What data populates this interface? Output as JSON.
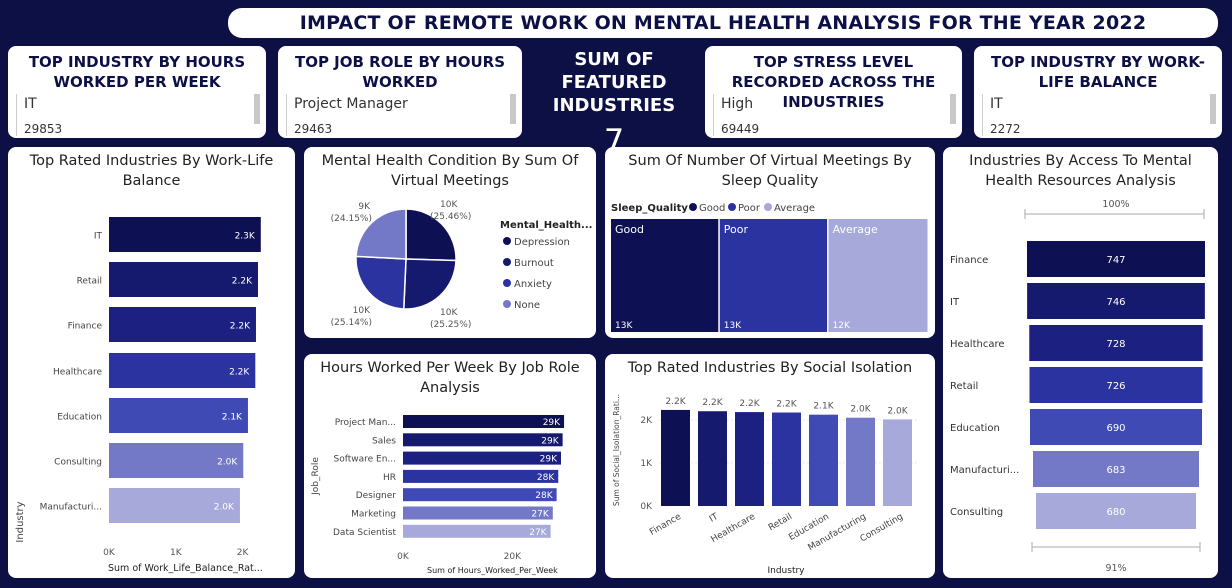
{
  "header": {
    "title": "IMPACT OF REMOTE WORK ON MENTAL HEALTH ANALYSIS FOR THE YEAR 2022"
  },
  "kpis": {
    "industry_hours": {
      "title": "TOP INDUSTRY BY HOURS WORKED PER WEEK",
      "value": "IT",
      "number": "29853"
    },
    "job_role_hours": {
      "title": "TOP JOB ROLE BY HOURS WORKED",
      "value": "Project Manager",
      "number": "29463"
    },
    "featured": {
      "title": "SUM OF FEATURED INDUSTRIES",
      "value": "7"
    },
    "stress": {
      "title": "TOP STRESS LEVEL RECORDED ACROSS THE INDUSTRIES",
      "value": "High",
      "number": "69449"
    },
    "work_life": {
      "title": "TOP INDUSTRY BY WORK-LIFE BALANCE",
      "value": "IT",
      "number": "2272"
    }
  },
  "colors": {
    "background": "#0d1045",
    "accent": "#0d1052",
    "shades": [
      "#0d1052",
      "#151a6e",
      "#1c2080",
      "#2b33a0",
      "#3f4ab5",
      "#7379c6",
      "#a6a9da"
    ]
  },
  "chart_data": [
    {
      "id": "work_life",
      "type": "bar",
      "orientation": "horizontal",
      "title": "Top Rated Industries By Work-Life Balance",
      "ylabel": "Industry",
      "xlabel": "Sum of Work_Life_Balance_Rat...",
      "categories": [
        "IT",
        "Retail",
        "Finance",
        "Healthcare",
        "Education",
        "Consulting",
        "Manufacturi..."
      ],
      "values": [
        2272,
        2230,
        2200,
        2190,
        2080,
        2010,
        1960
      ],
      "data_labels": [
        "2.3K",
        "2.2K",
        "2.2K",
        "2.2K",
        "2.1K",
        "2.0K",
        "2.0K"
      ],
      "x_ticks": [
        "0K",
        "1K",
        "2K"
      ],
      "xlim": [
        0,
        2300
      ]
    },
    {
      "id": "mental_health",
      "type": "pie",
      "title": "Mental Health Condition By Sum Of Virtual Meetings",
      "legend_title": "Mental_Health...",
      "categories": [
        "Depression",
        "Burnout",
        "Anxiety",
        "None"
      ],
      "values": [
        25.46,
        25.25,
        25.14,
        24.15
      ],
      "value_labels": [
        "10K",
        "10K",
        "10K",
        "9K"
      ],
      "pct_labels": [
        "(25.46%)",
        "(25.25%)",
        "(25.14%)",
        "(24.15%)"
      ],
      "legend_position": "right"
    },
    {
      "id": "sleep",
      "type": "treemap",
      "title": "Sum Of Number Of Virtual Meetings By Sleep Quality",
      "legend_title": "Sleep_Quality",
      "categories": [
        "Good",
        "Poor",
        "Average"
      ],
      "values": [
        13000,
        13000,
        12000
      ],
      "data_labels": [
        "13K",
        "13K",
        "12K"
      ],
      "legend_position": "top-left"
    },
    {
      "id": "access",
      "type": "funnel",
      "title": "Industries By Access To Mental Health Resources Analysis",
      "categories": [
        "Finance",
        "IT",
        "Healthcare",
        "Retail",
        "Education",
        "Manufacturi...",
        "Consulting"
      ],
      "values": [
        747,
        746,
        728,
        726,
        690,
        683,
        680
      ],
      "top_label": "100%",
      "bottom_label": "91%"
    },
    {
      "id": "hours_role",
      "type": "bar",
      "orientation": "horizontal",
      "title": "Hours Worked Per Week By Job Role Analysis",
      "ylabel": "Job_Role",
      "xlabel": "Sum of Hours_Worked_Per_Week",
      "categories": [
        "Project Man...",
        "Sales",
        "Software En...",
        "HR",
        "Designer",
        "Marketing",
        "Data Scientist"
      ],
      "values": [
        29463,
        29200,
        28900,
        28400,
        28100,
        27400,
        27000
      ],
      "data_labels": [
        "29K",
        "29K",
        "29K",
        "28K",
        "28K",
        "27K",
        "27K"
      ],
      "x_ticks": [
        "0K",
        "20K"
      ],
      "xlim": [
        0,
        30000
      ]
    },
    {
      "id": "isolation",
      "type": "bar",
      "orientation": "vertical",
      "title": "Top Rated Industries By Social Isolation",
      "xlabel": "Industry",
      "ylabel": "Sum of Social_Isolation_Rati...",
      "categories": [
        "Finance",
        "IT",
        "Healthcare",
        "Retail",
        "Education",
        "Manufacturing",
        "Consulting"
      ],
      "values": [
        2230,
        2200,
        2180,
        2170,
        2120,
        2050,
        2010
      ],
      "data_labels": [
        "2.2K",
        "2.2K",
        "2.2K",
        "2.2K",
        "2.1K",
        "2.0K",
        "2.0K"
      ],
      "y_ticks": [
        "0K",
        "1K",
        "2K"
      ],
      "ylim": [
        0,
        2600
      ]
    }
  ]
}
